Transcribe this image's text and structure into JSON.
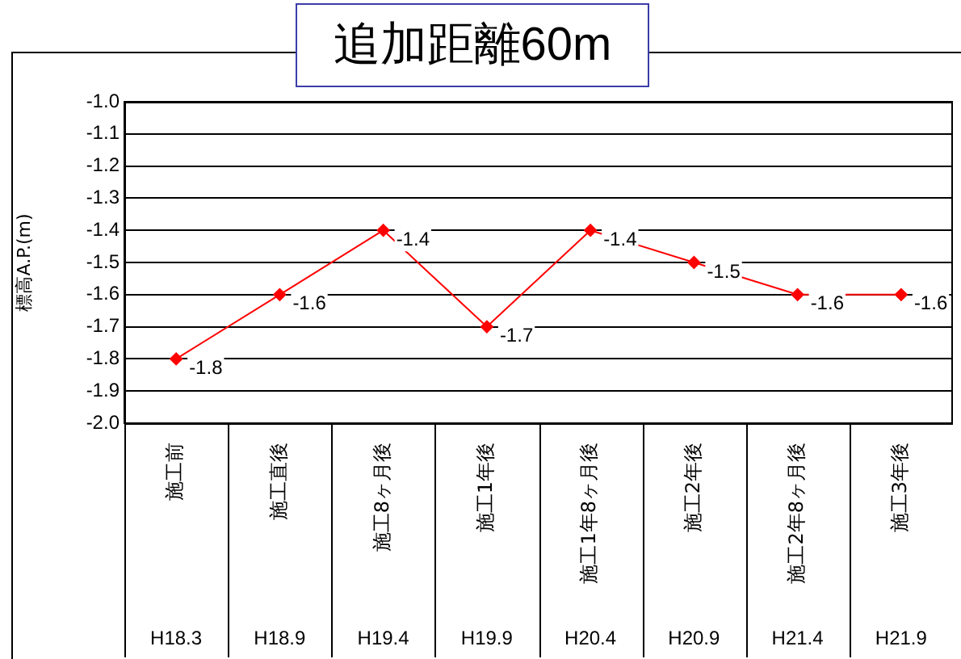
{
  "chart_data": {
    "type": "line",
    "title": "追加距離60m",
    "ylabel": "標高A.P.(m)",
    "categories": [
      "施工前\nH18.3",
      "施工直後\nH18.9",
      "施工8ヶ月後\nH19.4",
      "施工1年後\nH19.9",
      "施工1年8ヶ月後\nH20.4",
      "施工2年後\nH20.9",
      "施工2年8ヶ月後\nH21.4",
      "施工3年後\nH21.9"
    ],
    "series": [
      {
        "color": "#ff0000",
        "values": [
          -1.8,
          -1.6,
          -1.4,
          -1.7,
          -1.4,
          -1.5,
          -1.6,
          -1.6
        ]
      }
    ],
    "ylim": [
      -2.0,
      -1.0
    ],
    "yticks": [
      {
        "value": -2.0,
        "label": "-2.0"
      },
      {
        "value": -1.9,
        "label": "-1.9"
      },
      {
        "value": -1.8,
        "label": "-1.8"
      },
      {
        "value": -1.7,
        "label": "-1.7"
      },
      {
        "value": -1.6,
        "label": "-1.6"
      },
      {
        "value": -1.5,
        "label": "-1.5"
      },
      {
        "value": -1.4,
        "label": "-1.4"
      },
      {
        "value": -1.3,
        "label": "-1.3"
      },
      {
        "value": -1.2,
        "label": "-1.2"
      },
      {
        "value": -1.1,
        "label": "-1.1"
      },
      {
        "value": -1.0,
        "label": "-1.0"
      }
    ],
    "grid": "y",
    "legend": false,
    "marker": "diamond",
    "line_style": "solid",
    "data_labels": true
  }
}
